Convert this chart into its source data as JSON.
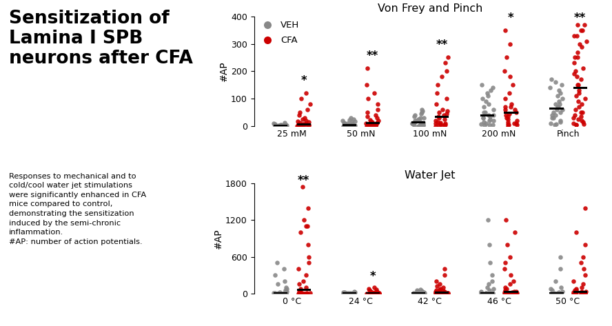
{
  "title_main": "Sensitization of\nLamina I SPB\nneurons after CFA",
  "subtitle": "Responses to mechanical and to\ncold/cool water jet stimulations\nwere significantly enhanced in CFA\nmice compared to control,\ndemonstrating the sensitization\ninduced by the semi-chronic\ninflammation.\n#AP: number of action potentials.",
  "panel1_title": "Von Frey and Pinch",
  "panel2_title": "Water Jet",
  "ylabel": "#AP",
  "panel1_categories": [
    "25 mM",
    "50 mN",
    "100 mN",
    "200 mN",
    "Pinch"
  ],
  "panel2_categories": [
    "0 °C",
    "24 °C",
    "42 °C",
    "46 °C",
    "50 °C"
  ],
  "panel1_ylim": [
    0,
    400
  ],
  "panel1_yticks": [
    0,
    100,
    200,
    300,
    400
  ],
  "panel2_ylim": [
    0,
    1800
  ],
  "panel2_yticks": [
    0,
    600,
    1200,
    1800
  ],
  "veh_color": "#888888",
  "cfa_color": "#CC0000",
  "sig_labels_panel1": [
    "*",
    "**",
    "**",
    "*",
    "**"
  ],
  "sig_labels_panel2": [
    "**",
    "*",
    "",
    "",
    ""
  ],
  "legend_veh": "VEH",
  "legend_cfa": "CFA",
  "p1_veh_25": [
    0,
    0,
    0,
    1,
    1,
    2,
    2,
    3,
    3,
    4,
    4,
    5,
    5,
    6,
    7,
    8,
    10,
    12,
    5,
    3,
    2,
    1,
    4,
    6,
    0,
    0,
    1,
    2,
    3
  ],
  "p1_cfa_25": [
    0,
    0,
    0,
    1,
    2,
    3,
    4,
    5,
    6,
    7,
    8,
    10,
    12,
    15,
    18,
    20,
    25,
    30,
    40,
    50,
    60,
    80,
    100,
    120,
    5,
    3,
    7,
    2,
    1
  ],
  "p1_veh_50": [
    0,
    0,
    1,
    2,
    3,
    5,
    7,
    8,
    10,
    12,
    15,
    18,
    20,
    22,
    25,
    30,
    5,
    3,
    2,
    8,
    6,
    4,
    10,
    1,
    0,
    0,
    2,
    3
  ],
  "p1_cfa_50": [
    0,
    0,
    1,
    2,
    5,
    8,
    10,
    15,
    20,
    30,
    40,
    50,
    60,
    80,
    100,
    120,
    150,
    210,
    5,
    3,
    7,
    12,
    18,
    22,
    35,
    2,
    1,
    0
  ],
  "p1_veh_100": [
    0,
    2,
    5,
    8,
    10,
    15,
    20,
    25,
    30,
    35,
    40,
    45,
    50,
    55,
    60,
    10,
    8,
    5,
    20,
    15,
    12,
    30,
    25,
    3,
    1,
    0,
    4
  ],
  "p1_cfa_100": [
    0,
    2,
    5,
    10,
    15,
    20,
    30,
    40,
    50,
    60,
    80,
    100,
    120,
    150,
    180,
    200,
    230,
    250,
    10,
    8,
    12,
    25,
    35,
    45,
    55,
    5,
    3
  ],
  "p1_veh_200": [
    5,
    10,
    20,
    30,
    40,
    50,
    60,
    70,
    80,
    90,
    100,
    110,
    120,
    130,
    140,
    150,
    30,
    20,
    15,
    50,
    40,
    35,
    25,
    8,
    5,
    3
  ],
  "p1_cfa_200": [
    0,
    5,
    10,
    20,
    30,
    40,
    50,
    60,
    70,
    80,
    100,
    120,
    150,
    180,
    200,
    250,
    300,
    350,
    15,
    10,
    25,
    35,
    45,
    60,
    70,
    8,
    5
  ],
  "p1_veh_pinch": [
    5,
    10,
    20,
    30,
    40,
    50,
    60,
    70,
    80,
    90,
    100,
    110,
    120,
    130,
    140,
    150,
    160,
    170,
    50,
    40,
    30,
    80,
    70,
    60,
    15,
    8
  ],
  "p1_cfa_pinch": [
    5,
    10,
    20,
    30,
    40,
    50,
    60,
    80,
    100,
    120,
    150,
    180,
    200,
    250,
    300,
    330,
    350,
    370,
    15,
    25,
    35,
    50,
    70,
    90,
    110,
    130,
    150,
    170,
    190,
    210,
    230,
    250,
    270,
    290,
    310,
    330,
    350,
    370,
    8,
    5
  ],
  "p2_veh_0": [
    0,
    0,
    0,
    2,
    5,
    8,
    10,
    15,
    20,
    30,
    50,
    80,
    100,
    150,
    200,
    300,
    400,
    500,
    3,
    2,
    1,
    8,
    6,
    0,
    0,
    1
  ],
  "p2_cfa_0": [
    0,
    0,
    0,
    2,
    5,
    10,
    20,
    30,
    50,
    80,
    100,
    150,
    200,
    300,
    400,
    500,
    600,
    800,
    1000,
    1100,
    1100,
    1200,
    1400,
    1750,
    3,
    2,
    8,
    12,
    0,
    0
  ],
  "p2_veh_24": [
    0,
    0,
    0,
    0,
    2,
    3,
    5,
    8,
    10,
    12,
    15,
    18,
    20,
    25,
    3,
    2,
    1,
    8,
    6,
    0,
    0,
    1,
    2
  ],
  "p2_cfa_24": [
    0,
    0,
    0,
    0,
    2,
    5,
    8,
    10,
    15,
    20,
    30,
    40,
    50,
    60,
    80,
    100,
    3,
    5,
    12,
    18,
    25,
    1,
    0
  ],
  "p2_veh_42": [
    0,
    0,
    0,
    2,
    5,
    8,
    10,
    15,
    20,
    30,
    40,
    50,
    60,
    5,
    3,
    2,
    10,
    8,
    1,
    0,
    0,
    3
  ],
  "p2_cfa_42": [
    0,
    0,
    2,
    5,
    10,
    15,
    20,
    30,
    40,
    50,
    60,
    80,
    100,
    120,
    150,
    200,
    300,
    400,
    8,
    5,
    3,
    15,
    12,
    20,
    25,
    1,
    0
  ],
  "p2_veh_46": [
    0,
    0,
    0,
    2,
    5,
    10,
    20,
    30,
    50,
    80,
    100,
    150,
    200,
    300,
    500,
    800,
    1200,
    5,
    3,
    8,
    12,
    1,
    0,
    0
  ],
  "p2_cfa_46": [
    0,
    0,
    0,
    2,
    5,
    10,
    20,
    30,
    50,
    80,
    100,
    150,
    200,
    300,
    400,
    500,
    600,
    800,
    1000,
    1200,
    5,
    3,
    8,
    12,
    20,
    30,
    1,
    0
  ],
  "p2_veh_50": [
    0,
    0,
    0,
    2,
    5,
    10,
    20,
    30,
    50,
    80,
    100,
    200,
    400,
    600,
    5,
    3,
    8,
    12,
    1,
    0,
    0
  ],
  "p2_cfa_50": [
    0,
    0,
    0,
    2,
    5,
    10,
    20,
    30,
    50,
    80,
    100,
    150,
    200,
    300,
    400,
    500,
    600,
    800,
    1000,
    1400,
    5,
    3,
    8,
    12,
    20,
    30,
    50,
    1,
    0
  ]
}
